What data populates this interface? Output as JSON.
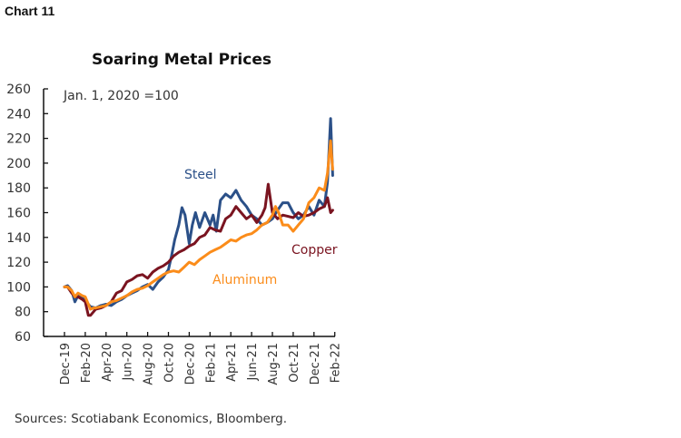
{
  "header": {
    "chart_number": "Chart 11"
  },
  "footer": {
    "sources": "Sources: Scotiabank Economics, Bloomberg."
  },
  "colors": {
    "steel": "#2b5088",
    "copper": "#7a1420",
    "aluminum": "#fb8c1a",
    "axis": "#111111"
  },
  "chart_data": {
    "type": "line",
    "title": "Soaring Metal Prices",
    "annotation": "Jan. 1, 2020 =100",
    "xlabel": "",
    "ylabel": "",
    "ylim": [
      60,
      260
    ],
    "yticks": [
      60,
      80,
      100,
      120,
      140,
      160,
      180,
      200,
      220,
      240,
      260
    ],
    "xticks": [
      "Dec-19",
      "Feb-20",
      "Apr-20",
      "Jun-20",
      "Aug-20",
      "Oct-20",
      "Dec-20",
      "Feb-21",
      "Apr-21",
      "Jun-21",
      "Aug-21",
      "Oct-21",
      "Dec-21",
      "Feb-22"
    ],
    "x_unit": "months since Dec-19",
    "grid": false,
    "legend": "inline-labels",
    "series": [
      {
        "name": "Steel",
        "x": [
          1.0,
          1.3,
          1.7,
          2.0,
          2.3,
          2.7,
          3.0,
          3.5,
          4.0,
          4.5,
          5.0,
          5.5,
          6.0,
          6.5,
          7.0,
          7.5,
          8.0,
          8.5,
          9.0,
          9.5,
          10.0,
          10.5,
          11.0,
          11.3,
          11.6,
          12.0,
          12.3,
          12.6,
          13.0,
          13.3,
          13.6,
          14.0,
          14.5,
          15.0,
          15.3,
          15.6,
          16.0,
          16.5,
          17.0,
          17.5,
          18.0,
          18.5,
          19.0,
          19.5,
          20.0,
          20.5,
          21.0,
          21.5,
          22.0,
          22.5,
          23.0,
          23.5,
          24.0,
          24.5,
          25.0,
          25.5,
          26.0,
          26.3,
          26.6,
          26.8
        ],
        "values": [
          100,
          101,
          97,
          88,
          93,
          91,
          89,
          84,
          83,
          85,
          86,
          85,
          88,
          90,
          93,
          95,
          97,
          100,
          102,
          98,
          104,
          108,
          114,
          125,
          138,
          150,
          164,
          158,
          135,
          150,
          160,
          148,
          160,
          150,
          158,
          145,
          170,
          175,
          172,
          178,
          170,
          165,
          158,
          155,
          150,
          152,
          155,
          162,
          168,
          168,
          160,
          155,
          158,
          165,
          158,
          170,
          165,
          185,
          236,
          190
        ]
      },
      {
        "name": "Copper",
        "x": [
          1.0,
          1.3,
          1.7,
          2.0,
          2.3,
          2.7,
          3.0,
          3.3,
          3.5,
          3.8,
          4.0,
          4.5,
          5.0,
          5.5,
          6.0,
          6.5,
          7.0,
          7.5,
          8.0,
          8.5,
          9.0,
          9.5,
          10.0,
          10.5,
          11.0,
          11.5,
          12.0,
          12.5,
          13.0,
          13.5,
          14.0,
          14.5,
          15.0,
          15.5,
          16.0,
          16.5,
          17.0,
          17.5,
          18.0,
          18.5,
          19.0,
          19.5,
          20.0,
          20.3,
          20.6,
          21.0,
          21.5,
          22.0,
          22.5,
          23.0,
          23.5,
          24.0,
          24.5,
          25.0,
          25.5,
          26.0,
          26.3,
          26.6,
          26.8
        ],
        "values": [
          100,
          100,
          95,
          92,
          92,
          90,
          88,
          77,
          77,
          80,
          82,
          83,
          85,
          88,
          95,
          97,
          104,
          106,
          109,
          110,
          107,
          112,
          115,
          117,
          120,
          125,
          128,
          130,
          133,
          135,
          140,
          142,
          148,
          146,
          145,
          155,
          158,
          165,
          160,
          155,
          158,
          152,
          158,
          164,
          183,
          160,
          155,
          158,
          157,
          156,
          160,
          157,
          158,
          160,
          163,
          165,
          172,
          160,
          162
        ]
      },
      {
        "name": "Aluminum",
        "x": [
          1.0,
          1.3,
          1.7,
          2.0,
          2.3,
          2.7,
          3.0,
          3.3,
          3.5,
          3.8,
          4.0,
          4.5,
          5.0,
          5.5,
          6.0,
          6.5,
          7.0,
          7.5,
          8.0,
          8.5,
          9.0,
          9.5,
          10.0,
          10.5,
          11.0,
          11.5,
          12.0,
          12.5,
          13.0,
          13.5,
          14.0,
          14.5,
          15.0,
          15.5,
          16.0,
          16.5,
          17.0,
          17.5,
          18.0,
          18.5,
          19.0,
          19.5,
          20.0,
          20.5,
          21.0,
          21.3,
          21.6,
          22.0,
          22.5,
          23.0,
          23.5,
          24.0,
          24.5,
          25.0,
          25.5,
          26.0,
          26.3,
          26.6,
          26.8
        ],
        "values": [
          100,
          100,
          97,
          92,
          95,
          93,
          92,
          86,
          82,
          83,
          83,
          84,
          85,
          88,
          89,
          91,
          93,
          96,
          98,
          99,
          101,
          104,
          107,
          110,
          112,
          113,
          112,
          116,
          120,
          118,
          122,
          125,
          128,
          130,
          132,
          135,
          138,
          137,
          140,
          142,
          143,
          146,
          150,
          152,
          158,
          165,
          160,
          150,
          150,
          145,
          150,
          155,
          168,
          172,
          180,
          178,
          192,
          218,
          195
        ]
      }
    ]
  }
}
